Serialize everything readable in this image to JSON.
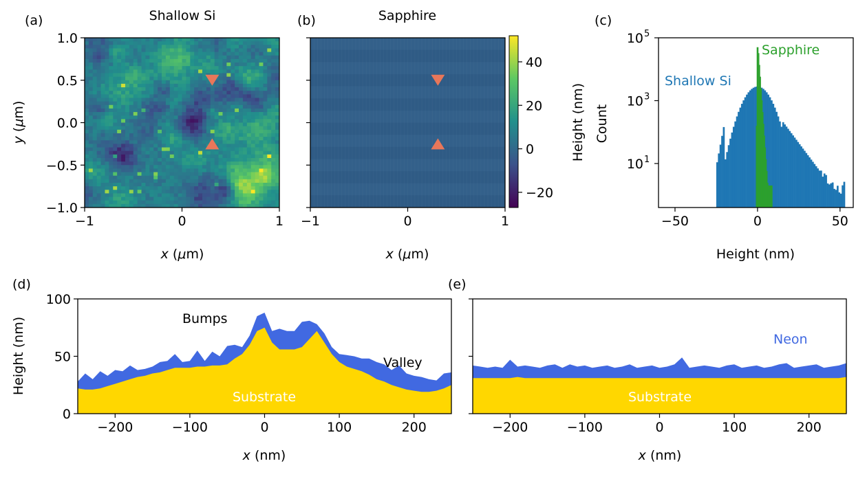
{
  "chart_data": [
    {
      "panel": "(a)",
      "type": "heatmap",
      "title": "Shallow Si",
      "xlabel": "x (μm)",
      "ylabel": "y (μm)",
      "xlim": [
        -1,
        1
      ],
      "ylim": [
        -1,
        1
      ],
      "xticks": [
        "−1",
        "0",
        "1"
      ],
      "yticks": [
        "−1.0",
        "−0.5",
        "0.0",
        "0.5",
        "1.0"
      ],
      "markers": [
        {
          "x": 0.31,
          "y": 0.5,
          "shape": "triangle-down"
        },
        {
          "x": 0.31,
          "y": -0.25,
          "shape": "triangle-up"
        }
      ],
      "marker_color": "#E8775A"
    },
    {
      "panel": "(b)",
      "type": "heatmap",
      "title": "Sapphire",
      "xlabel": "x (μm)",
      "xlim": [
        -1,
        1
      ],
      "ylim": [
        -1,
        1
      ],
      "xticks": [
        "−1",
        "0",
        "1"
      ],
      "markers": [
        {
          "x": 0.31,
          "y": 0.5,
          "shape": "triangle-down"
        },
        {
          "x": 0.31,
          "y": -0.25,
          "shape": "triangle-up"
        }
      ],
      "marker_color": "#E8775A",
      "colorbar": {
        "label": "Height (nm)",
        "range": [
          -27,
          52
        ],
        "ticks": [
          "−20",
          "0",
          "20",
          "40"
        ],
        "tick_values": [
          -20,
          0,
          20,
          40
        ]
      }
    },
    {
      "panel": "(c)",
      "type": "bar",
      "xlabel": "Height (nm)",
      "ylabel": "Count",
      "xlim": [
        -60,
        58
      ],
      "ylim_log10": [
        -0.4,
        5
      ],
      "xticks": [
        "−50",
        "0",
        "50"
      ],
      "xtick_values": [
        -50,
        0,
        50
      ],
      "yticks": [
        "10",
        "10",
        "10"
      ],
      "ytick_exponents": [
        "1",
        "3",
        "5"
      ],
      "series": [
        {
          "name": "Shallow Si",
          "color": "#1F77B4",
          "range": [
            -25,
            53
          ],
          "peak_log10": 3.45,
          "center": 0,
          "sigma": 9.5,
          "tail": "right"
        },
        {
          "name": "Sapphire",
          "color": "#2CA02C",
          "range": [
            -1,
            9
          ],
          "peak_log10": 4.7,
          "center": 0
        }
      ]
    },
    {
      "panel": "(d)",
      "type": "area",
      "xlabel": "x (nm)",
      "ylabel": "Height (nm)",
      "xlim": [
        -250,
        250
      ],
      "ylim": [
        0,
        100
      ],
      "xticks": [
        "−200",
        "−100",
        "0",
        "100",
        "200"
      ],
      "xtick_values": [
        -200,
        -100,
        0,
        100,
        200
      ],
      "yticks": [
        "0",
        "50",
        "100"
      ],
      "ytick_values": [
        0,
        50,
        100
      ],
      "x": [
        -250,
        -240,
        -230,
        -220,
        -210,
        -200,
        -190,
        -180,
        -170,
        -160,
        -150,
        -140,
        -130,
        -120,
        -110,
        -100,
        -90,
        -80,
        -70,
        -60,
        -50,
        -40,
        -30,
        -20,
        -10,
        0,
        10,
        20,
        30,
        40,
        50,
        60,
        70,
        80,
        90,
        100,
        110,
        120,
        130,
        140,
        150,
        160,
        170,
        180,
        190,
        200,
        210,
        220,
        230,
        240,
        250
      ],
      "substrate": [
        22,
        21,
        21,
        22,
        24,
        26,
        28,
        30,
        32,
        33,
        35,
        36,
        38,
        40,
        40,
        40,
        41,
        41,
        42,
        42,
        43,
        48,
        52,
        60,
        72,
        75,
        62,
        56,
        56,
        56,
        58,
        65,
        72,
        62,
        52,
        45,
        41,
        39,
        37,
        34,
        30,
        28,
        25,
        23,
        21,
        20,
        19,
        19,
        20,
        22,
        25
      ],
      "neon": [
        28,
        35,
        30,
        37,
        33,
        38,
        37,
        42,
        38,
        39,
        41,
        45,
        46,
        52,
        45,
        46,
        55,
        46,
        54,
        50,
        59,
        60,
        58,
        68,
        85,
        88,
        72,
        74,
        72,
        72,
        80,
        81,
        78,
        70,
        58,
        52,
        51,
        50,
        48,
        48,
        45,
        43,
        38,
        42,
        35,
        33,
        32,
        30,
        29,
        35,
        36
      ],
      "substrate_color": "#FFD700",
      "neon_color": "#4169E1",
      "annotations": {
        "bumps": "Bumps",
        "valley": "Valley",
        "substrate": "Substrate"
      }
    },
    {
      "panel": "(e)",
      "type": "area",
      "xlabel": "x (nm)",
      "xlim": [
        -250,
        250
      ],
      "ylim": [
        0,
        100
      ],
      "xticks": [
        "−200",
        "−100",
        "0",
        "100",
        "200"
      ],
      "xtick_values": [
        -200,
        -100,
        0,
        100,
        200
      ],
      "x": [
        -250,
        -240,
        -230,
        -220,
        -210,
        -200,
        -190,
        -180,
        -170,
        -160,
        -150,
        -140,
        -130,
        -120,
        -110,
        -100,
        -90,
        -80,
        -70,
        -60,
        -50,
        -40,
        -30,
        -20,
        -10,
        0,
        10,
        20,
        30,
        40,
        50,
        60,
        70,
        80,
        90,
        100,
        110,
        120,
        130,
        140,
        150,
        160,
        170,
        180,
        190,
        200,
        210,
        220,
        230,
        240,
        250
      ],
      "substrate": [
        31,
        31,
        31,
        31,
        31,
        31,
        32,
        31,
        31,
        31,
        31,
        31,
        31,
        31,
        31,
        31,
        31,
        31,
        31,
        31,
        31,
        31,
        31,
        31,
        31,
        31,
        31,
        31,
        31,
        31,
        31,
        31,
        31,
        31,
        31,
        31,
        31,
        31,
        31,
        31,
        31,
        31,
        31,
        31,
        31,
        31,
        31,
        31,
        31,
        31,
        32
      ],
      "neon": [
        42,
        41,
        40,
        41,
        40,
        47,
        41,
        42,
        41,
        40,
        42,
        43,
        40,
        43,
        41,
        42,
        40,
        41,
        42,
        40,
        41,
        43,
        40,
        41,
        42,
        40,
        41,
        43,
        49,
        40,
        41,
        42,
        41,
        40,
        42,
        43,
        40,
        41,
        42,
        40,
        41,
        43,
        44,
        40,
        41,
        42,
        43,
        40,
        41,
        42,
        44
      ],
      "substrate_color": "#FFD700",
      "neon_color": "#4169E1",
      "annotations": {
        "neon": "Neon",
        "substrate": "Substrate"
      }
    }
  ]
}
